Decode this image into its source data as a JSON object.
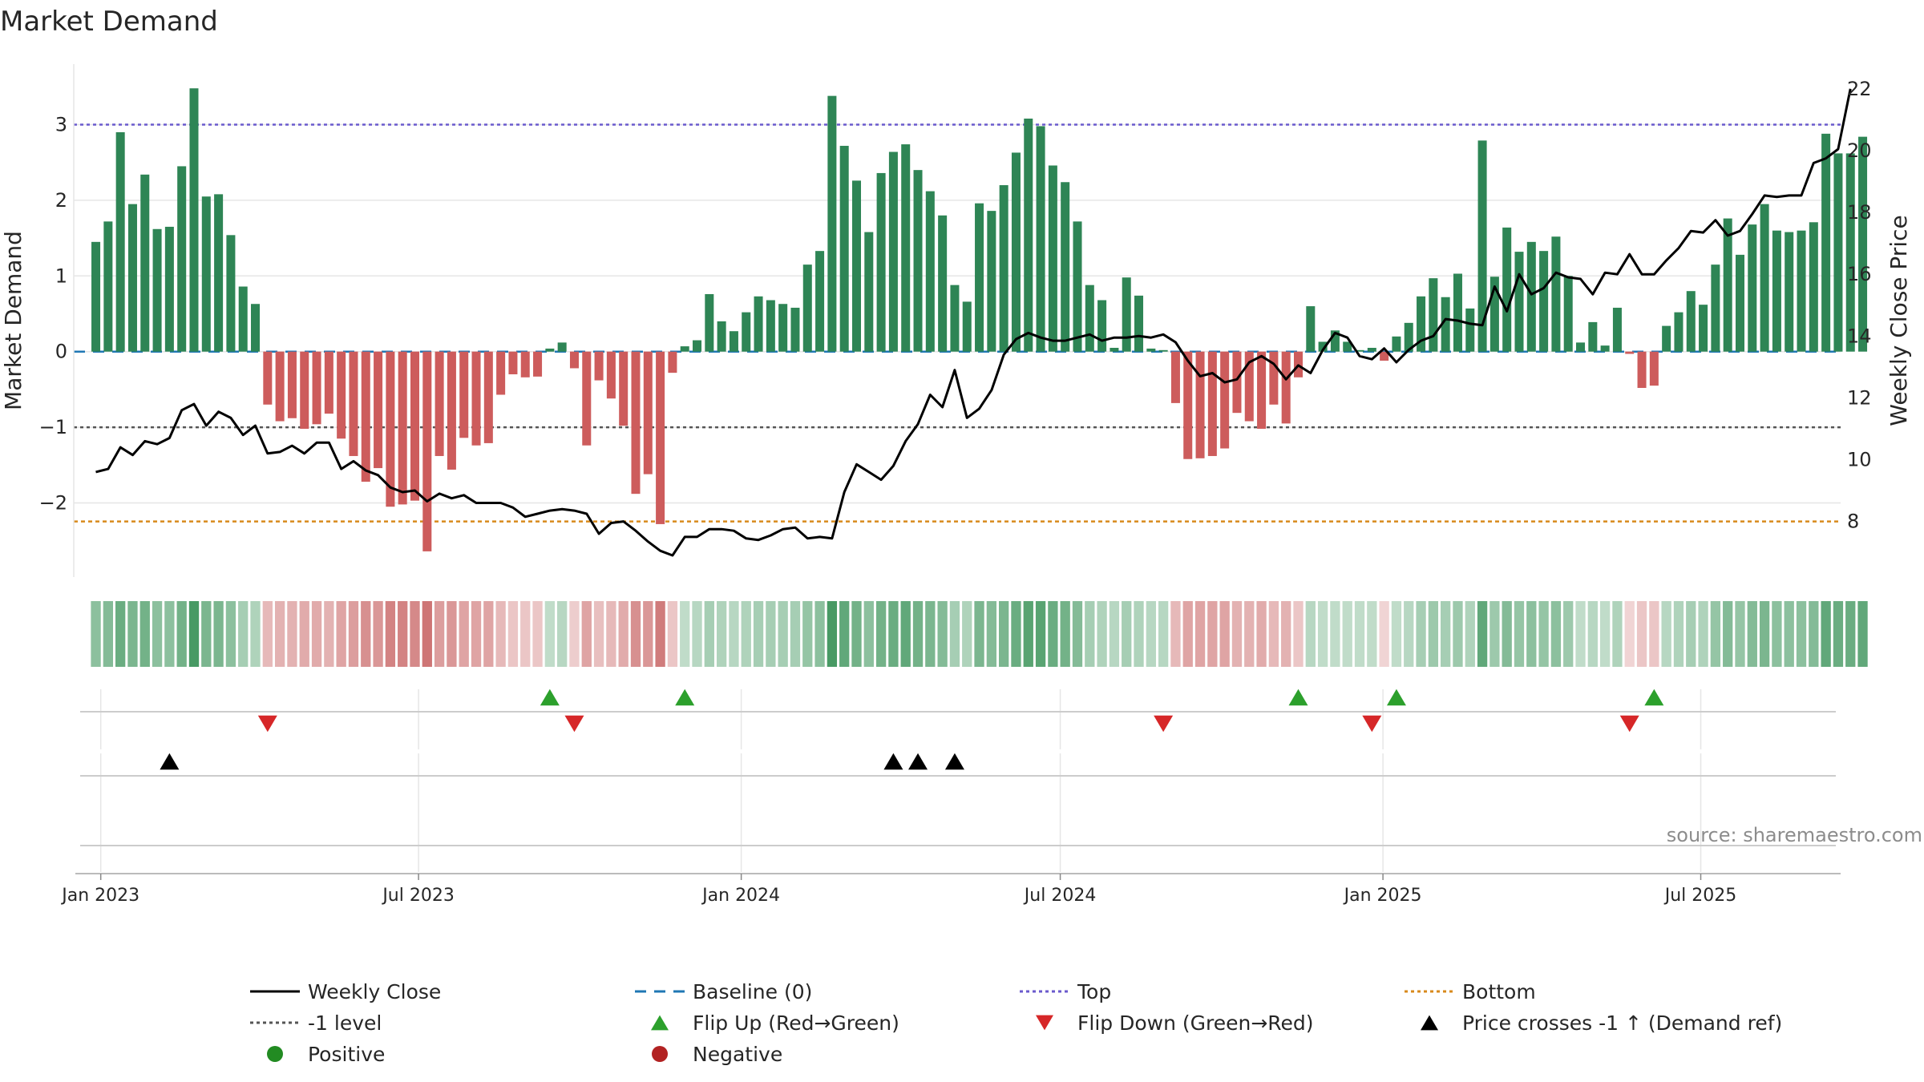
{
  "chart_data": {
    "type": "bar",
    "title": "Market Demand",
    "ylabel": "Market Demand",
    "ylabel_right": "Weekly Close Price",
    "ylim": [
      -2.98,
      3.8
    ],
    "ylim_right": [
      6.2,
      22.8
    ],
    "yticks": [
      -2,
      -1,
      0,
      1,
      2,
      3
    ],
    "yticks_right": [
      8,
      10,
      12,
      14,
      16,
      18,
      20,
      22
    ],
    "ytick_labels": [
      "−2",
      "−1",
      "0",
      "1",
      "2",
      "3"
    ],
    "ytick_labels_right": [
      "8",
      "10",
      "12",
      "14",
      "16",
      "18",
      "20",
      "22"
    ],
    "x_week_range": [
      -1.8,
      142.2
    ],
    "x_ticks": [
      {
        "label": "Jan 2023",
        "week": 0.4
      },
      {
        "label": "Jul 2023",
        "week": 26.3
      },
      {
        "label": "Jan 2024",
        "week": 52.6
      },
      {
        "label": "Jul 2024",
        "week": 78.6
      },
      {
        "label": "Jan 2025",
        "week": 104.9
      },
      {
        "label": "Jul 2025",
        "week": 130.8
      }
    ],
    "reference_lines": {
      "top": 3.0,
      "baseline": 0,
      "minus_one": -1,
      "bottom_price": 8.0
    },
    "demand": [
      1.45,
      1.72,
      2.9,
      1.95,
      2.34,
      1.62,
      1.65,
      2.45,
      3.48,
      2.05,
      2.08,
      1.54,
      0.86,
      0.63,
      -0.7,
      -0.92,
      -0.88,
      -1.02,
      -0.96,
      -0.82,
      -1.15,
      -1.38,
      -1.72,
      -1.54,
      -2.05,
      -2.02,
      -1.97,
      -2.64,
      -1.38,
      -1.56,
      -1.14,
      -1.24,
      -1.21,
      -0.57,
      -0.3,
      -0.34,
      -0.33,
      0.04,
      0.12,
      -0.22,
      -1.24,
      -0.38,
      -0.62,
      -0.98,
      -1.88,
      -1.62,
      -2.28,
      -0.28,
      0.07,
      0.15,
      0.76,
      0.4,
      0.27,
      0.52,
      0.73,
      0.68,
      0.63,
      0.58,
      1.15,
      1.33,
      3.38,
      2.72,
      2.26,
      1.58,
      2.36,
      2.64,
      2.74,
      2.4,
      2.12,
      1.8,
      0.88,
      0.66,
      1.96,
      1.86,
      2.2,
      2.63,
      3.08,
      2.98,
      2.46,
      2.24,
      1.72,
      0.88,
      0.68,
      0.05,
      0.98,
      0.74,
      0.04,
      0.02,
      -0.68,
      -1.42,
      -1.41,
      -1.38,
      -1.28,
      -0.81,
      -0.92,
      -1.02,
      -0.7,
      -0.95,
      -0.34,
      0.6,
      0.13,
      0.28,
      0.13,
      0.02,
      0.05,
      -0.12,
      0.2,
      0.38,
      0.73,
      0.97,
      0.72,
      1.03,
      0.57,
      2.79,
      0.99,
      1.64,
      1.32,
      1.45,
      1.33,
      1.52,
      1.0,
      0.12,
      0.39,
      0.08,
      0.58,
      -0.03,
      -0.48,
      -0.45,
      0.34,
      0.52,
      0.8,
      0.62,
      1.15,
      1.76,
      1.28,
      1.68,
      1.95,
      1.6,
      1.58,
      1.6,
      1.71,
      2.88,
      2.62,
      2.62,
      2.84
    ],
    "weekly_close": [
      9.6,
      9.7,
      10.4,
      10.15,
      10.6,
      10.5,
      10.7,
      11.6,
      11.8,
      11.1,
      11.55,
      11.35,
      10.8,
      11.1,
      10.2,
      10.25,
      10.45,
      10.2,
      10.55,
      10.55,
      9.7,
      9.95,
      9.65,
      9.5,
      9.1,
      8.95,
      9.0,
      8.65,
      8.9,
      8.75,
      8.85,
      8.6,
      8.6,
      8.6,
      8.45,
      8.15,
      8.25,
      8.35,
      8.4,
      8.35,
      8.25,
      7.6,
      7.95,
      8.0,
      7.7,
      7.35,
      7.05,
      6.9,
      7.5,
      7.5,
      7.75,
      7.75,
      7.7,
      7.45,
      7.4,
      7.55,
      7.75,
      7.8,
      7.45,
      7.5,
      7.45,
      8.95,
      9.85,
      9.6,
      9.35,
      9.8,
      10.6,
      11.15,
      12.1,
      11.7,
      12.9,
      11.35,
      11.65,
      12.25,
      13.4,
      13.9,
      14.1,
      13.95,
      13.85,
      13.85,
      13.95,
      14.05,
      13.85,
      13.95,
      13.95,
      14.0,
      13.95,
      14.05,
      13.8,
      13.2,
      12.7,
      12.8,
      12.5,
      12.6,
      13.15,
      13.35,
      13.1,
      12.6,
      13.05,
      12.8,
      13.55,
      14.1,
      13.95,
      13.35,
      13.25,
      13.6,
      13.15,
      13.55,
      13.85,
      14.0,
      14.55,
      14.5,
      14.4,
      14.35,
      15.6,
      14.8,
      16.0,
      15.35,
      15.55,
      16.05,
      15.9,
      15.85,
      15.35,
      16.05,
      16.0,
      16.65,
      16.0,
      16.0,
      16.45,
      16.85,
      17.4,
      17.35,
      17.75,
      17.25,
      17.4,
      17.95,
      18.55,
      18.5,
      18.55,
      18.55,
      19.6,
      19.75,
      20.05,
      22.0
    ],
    "color_strip": [
      0.45,
      0.5,
      0.65,
      0.55,
      0.6,
      0.45,
      0.45,
      0.6,
      0.85,
      0.55,
      0.55,
      0.45,
      0.3,
      0.25,
      -0.3,
      -0.35,
      -0.35,
      -0.4,
      -0.4,
      -0.35,
      -0.45,
      -0.5,
      -0.6,
      -0.55,
      -0.7,
      -0.7,
      -0.65,
      -0.8,
      -0.5,
      -0.55,
      -0.45,
      -0.45,
      -0.45,
      -0.3,
      -0.2,
      -0.2,
      -0.2,
      0.15,
      0.2,
      -0.15,
      -0.45,
      -0.25,
      -0.3,
      -0.4,
      -0.6,
      -0.55,
      -0.75,
      -0.2,
      0.15,
      0.2,
      0.3,
      0.25,
      0.2,
      0.25,
      0.3,
      0.3,
      0.3,
      0.3,
      0.4,
      0.45,
      0.85,
      0.7,
      0.6,
      0.45,
      0.6,
      0.65,
      0.7,
      0.6,
      0.55,
      0.5,
      0.3,
      0.25,
      0.55,
      0.5,
      0.55,
      0.65,
      0.75,
      0.75,
      0.65,
      0.6,
      0.5,
      0.3,
      0.25,
      0.2,
      0.3,
      0.25,
      0.2,
      0.2,
      -0.3,
      -0.45,
      -0.45,
      -0.45,
      -0.45,
      -0.35,
      -0.35,
      -0.4,
      -0.3,
      -0.35,
      -0.2,
      0.2,
      0.15,
      0.15,
      0.15,
      0.15,
      0.15,
      -0.1,
      0.15,
      0.2,
      0.3,
      0.35,
      0.3,
      0.35,
      0.25,
      0.7,
      0.35,
      0.5,
      0.4,
      0.45,
      0.4,
      0.45,
      0.35,
      0.15,
      0.2,
      0.15,
      0.25,
      -0.1,
      -0.2,
      -0.2,
      0.2,
      0.25,
      0.3,
      0.25,
      0.4,
      0.5,
      0.4,
      0.5,
      0.55,
      0.45,
      0.45,
      0.45,
      0.5,
      0.7,
      0.65,
      0.65,
      0.7
    ],
    "flip_up_weeks": [
      37,
      48,
      98,
      106,
      127
    ],
    "flip_down_weeks": [
      14,
      39,
      87,
      104,
      125
    ],
    "price_cross_weeks": [
      6,
      65,
      67,
      70
    ],
    "legend": [
      {
        "label": "Weekly Close",
        "symbol": "solid-line",
        "color": "#000000"
      },
      {
        "label": "Baseline (0)",
        "symbol": "dashed-line",
        "color": "#1f77b4"
      },
      {
        "label": "Top",
        "symbol": "dotted-line",
        "color": "#6a5acd"
      },
      {
        "label": "Bottom",
        "symbol": "dotted-line",
        "color": "#d88a1c"
      },
      {
        "label": "-1 level",
        "symbol": "dotted-line",
        "color": "#555555"
      },
      {
        "label": "Flip Up (Red→Green)",
        "symbol": "triangle-up",
        "color": "#2ca02c"
      },
      {
        "label": "Flip Down (Green→Red)",
        "symbol": "triangle-down",
        "color": "#d62728"
      },
      {
        "label": "Price crosses -1 ↑ (Demand ref)",
        "symbol": "triangle-up",
        "color": "#000000"
      },
      {
        "label": "Positive",
        "symbol": "circle",
        "color": "#228b22"
      },
      {
        "label": "Negative",
        "symbol": "circle",
        "color": "#b22222"
      }
    ],
    "source": "source: sharemaestro.com"
  },
  "colors": {
    "positive_bar": "#2e8555",
    "negative_bar": "#cd5c5c",
    "price_line": "#000000",
    "baseline": "#1f77b4",
    "top_line": "#6a5acd",
    "bottom_line": "#d88a1c",
    "minus_one_line": "#555555",
    "flip_up": "#2ca02c",
    "flip_down": "#d62728",
    "cross": "#000000",
    "grid": "#e6e6e6",
    "marker_axis": "#cccccc"
  }
}
